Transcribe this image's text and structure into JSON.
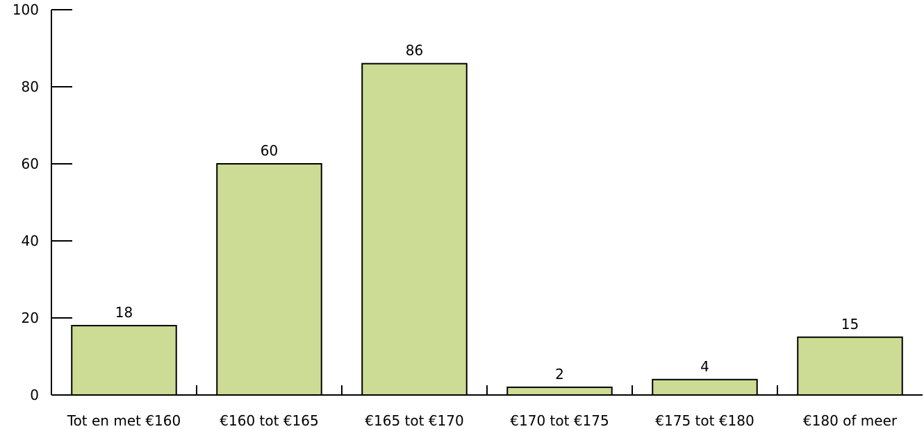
{
  "chart_data": {
    "type": "bar",
    "categories": [
      "Tot en met €160",
      "€160 tot €165",
      "€165 tot €170",
      "€170 tot €175",
      "€175 tot €180",
      "€180 of meer"
    ],
    "values": [
      18,
      60,
      86,
      2,
      4,
      15
    ],
    "title": "",
    "xlabel": "",
    "ylabel": "",
    "ylim": [
      0,
      100
    ],
    "yticks": [
      0,
      20,
      40,
      60,
      80,
      100
    ],
    "grid": false,
    "legend": "none",
    "colors": {
      "bar_fill": "#ccdc94",
      "bar_stroke": "#000000",
      "axis": "#000000"
    }
  }
}
